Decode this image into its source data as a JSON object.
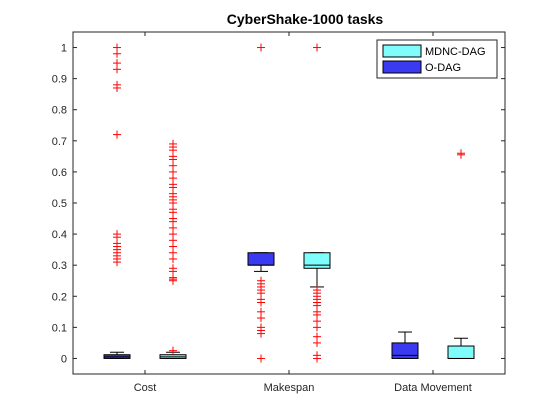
{
  "chart_data": {
    "type": "box",
    "title": "CyberShake-1000 tasks",
    "xlabel": "",
    "ylabel": "",
    "ylim": [
      -0.05,
      1.05
    ],
    "yticks": [
      0,
      0.1,
      0.2,
      0.3,
      0.4,
      0.5,
      0.6,
      0.7,
      0.8,
      0.9,
      1
    ],
    "categories": [
      "Cost",
      "Makespan",
      "Data Movement"
    ],
    "legend_position": "top-right",
    "series": [
      {
        "name": "MDNC-DAG",
        "color": "#7ffcfc",
        "boxes": [
          {
            "category": "Cost",
            "whisker_low": 0.0,
            "q1": 0.0,
            "median": 0.005,
            "q3": 0.012,
            "whisker_high": 0.02,
            "outliers": [
              0.025,
              0.25,
              0.255,
              0.26,
              0.28,
              0.29,
              0.32,
              0.34,
              0.36,
              0.38,
              0.4,
              0.42,
              0.44,
              0.45,
              0.47,
              0.48,
              0.5,
              0.51,
              0.52,
              0.53,
              0.55,
              0.56,
              0.58,
              0.6,
              0.62,
              0.64,
              0.65,
              0.67,
              0.68,
              0.69
            ]
          },
          {
            "category": "Makespan",
            "whisker_low": 0.23,
            "q1": 0.29,
            "median": 0.3,
            "q3": 0.34,
            "whisker_high": 0.34,
            "outliers": [
              0.0,
              0.01,
              0.05,
              0.07,
              0.1,
              0.12,
              0.14,
              0.15,
              0.17,
              0.18,
              0.19,
              0.2,
              0.21,
              0.22,
              1.0
            ]
          },
          {
            "category": "Data Movement",
            "whisker_low": 0.0,
            "q1": 0.0,
            "median": 0.0,
            "q3": 0.04,
            "whisker_high": 0.065,
            "outliers": [
              0.655,
              0.66
            ]
          }
        ]
      },
      {
        "name": "O-DAG",
        "color": "#3a3af0",
        "boxes": [
          {
            "category": "Cost",
            "whisker_low": 0.0,
            "q1": 0.0,
            "median": 0.005,
            "q3": 0.012,
            "whisker_high": 0.02,
            "outliers": [
              0.31,
              0.32,
              0.33,
              0.34,
              0.35,
              0.36,
              0.37,
              0.39,
              0.4,
              0.72,
              0.87,
              0.88,
              0.93,
              0.95,
              0.98,
              1.0
            ]
          },
          {
            "category": "Makespan",
            "whisker_low": 0.28,
            "q1": 0.3,
            "median": 0.3,
            "q3": 0.34,
            "whisker_high": 0.34,
            "outliers": [
              0.0,
              0.08,
              0.09,
              0.1,
              0.13,
              0.15,
              0.18,
              0.19,
              0.21,
              0.22,
              0.23,
              0.24,
              0.25,
              1.0
            ]
          },
          {
            "category": "Data Movement",
            "whisker_low": 0.0,
            "q1": 0.0,
            "median": 0.01,
            "q3": 0.05,
            "whisker_high": 0.085,
            "outliers": []
          }
        ]
      }
    ],
    "outlier_color": "#ff0000",
    "outlier_marker": "+",
    "grid": false
  }
}
